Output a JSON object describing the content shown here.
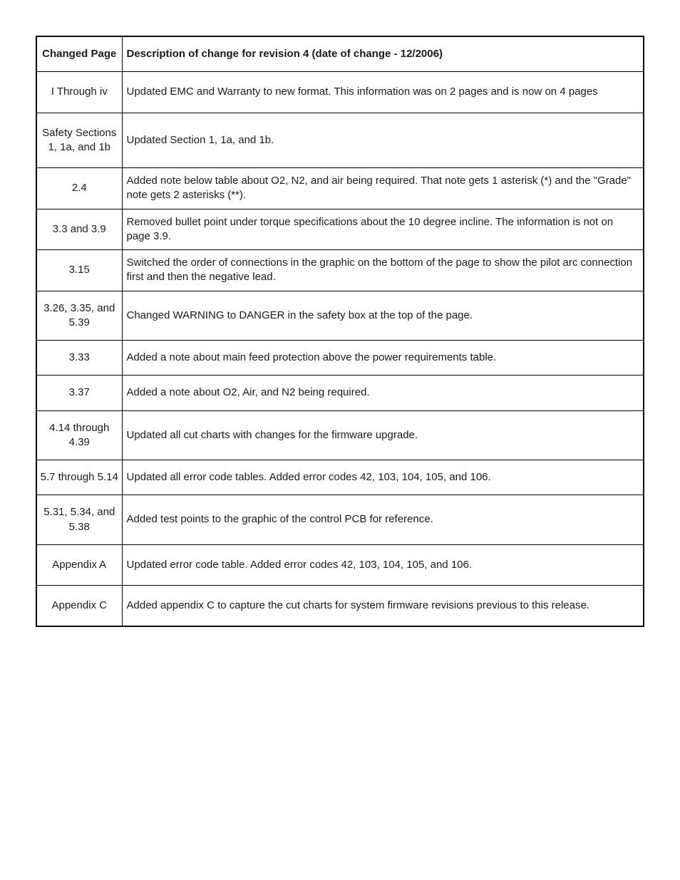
{
  "table": {
    "columns": [
      {
        "key": "page",
        "header": "Changed\nPage"
      },
      {
        "key": "desc",
        "header": "Description of change for revision 4 (date of change - 12/2006)"
      }
    ],
    "rows": [
      {
        "page": "I Through iv",
        "desc": "Updated EMC and Warranty to new format. This information was on 2 pages and is now on 4 pages",
        "tall": true
      },
      {
        "page": "Safety Sections 1, 1a, and 1b",
        "desc": "Updated Section 1, 1a, and 1b.",
        "tall": true
      },
      {
        "page": "2.4",
        "desc": "Added note below table about O2, N2, and air being required. That note gets 1 asterisk (*) and the \"Grade\" note gets 2 asterisks (**)."
      },
      {
        "page": "3.3 and 3.9",
        "desc": "Removed bullet point under torque specifications about the 10 degree incline. The information is not on page 3.9."
      },
      {
        "page": "3.15",
        "desc": "Switched the order of connections in the graphic on the bottom of the page to show the pilot arc connection first and then the negative lead."
      },
      {
        "page": "3.26, 3.35, and 5.39",
        "desc": "Changed WARNING to DANGER in the safety box at the top of the page."
      },
      {
        "page": "3.33",
        "desc": "Added a note about main feed protection above the power requirements table."
      },
      {
        "page": "3.37",
        "desc": "Added a note about O2, Air, and N2 being required."
      },
      {
        "page": "4.14 through 4.39",
        "desc": "Updated all cut charts with changes for the firmware upgrade."
      },
      {
        "page": "5.7 through 5.14",
        "desc": "Updated all error code tables. Added error codes 42, 103, 104, 105, and 106."
      },
      {
        "page": "5.31, 5.34, and 5.38",
        "desc": "Added test points to the graphic of the control PCB for reference."
      },
      {
        "page": "Appendix A",
        "desc": "Updated error code table. Added error codes 42, 103, 104, 105, and 106.",
        "tall": true
      },
      {
        "page": "Appendix C",
        "desc": "Added appendix C to capture the cut charts for system firmware revisions previous to this release.",
        "tall": true
      }
    ],
    "style": {
      "border_color": "#000000",
      "text_color": "#1a1a1a",
      "background_color": "#ffffff",
      "font_size": 15,
      "header_font_weight": "bold",
      "col_page_width": 120
    }
  }
}
